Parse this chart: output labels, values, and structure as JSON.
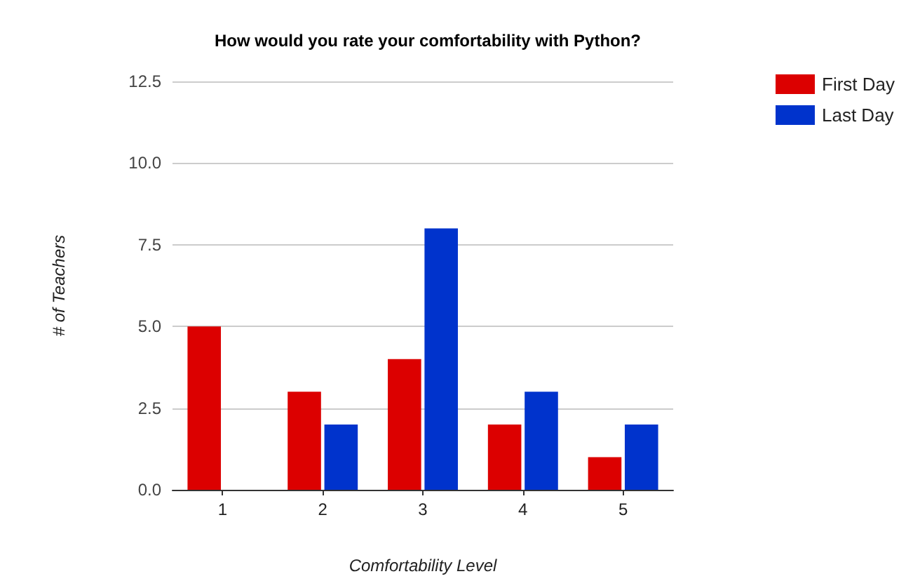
{
  "chart_data": {
    "type": "bar",
    "title": "How would you rate your comfortability with Python?",
    "xlabel": "Comfortability Level",
    "ylabel": "# of Teachers",
    "categories": [
      "1",
      "2",
      "3",
      "4",
      "5"
    ],
    "series": [
      {
        "name": "First Day",
        "color": "#dc0000",
        "values": [
          5,
          3,
          4,
          2,
          1
        ]
      },
      {
        "name": "Last Day",
        "color": "#0033cc",
        "values": [
          0,
          2,
          8,
          3,
          2
        ]
      }
    ],
    "ylim": [
      0,
      12.5
    ],
    "yticks": [
      {
        "value": 0,
        "label": "0.0"
      },
      {
        "value": 2.5,
        "label": "2.5"
      },
      {
        "value": 5,
        "label": "5.0"
      },
      {
        "value": 7.5,
        "label": "7.5"
      },
      {
        "value": 10,
        "label": "10.0"
      },
      {
        "value": 12.5,
        "label": "12.5"
      }
    ],
    "grid": "y",
    "legend": "top right"
  }
}
